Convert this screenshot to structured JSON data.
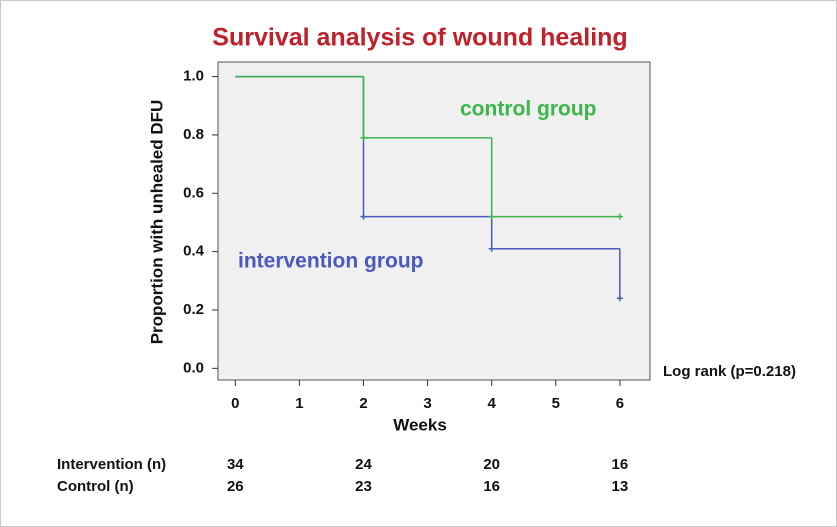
{
  "chart_data": {
    "type": "step",
    "title": "Survival analysis of wound healing",
    "xlabel": "Weeks",
    "ylabel": "Proportion with unhealed DFU",
    "x": [
      0,
      2,
      4,
      6
    ],
    "series": [
      {
        "name": "intervention group",
        "color": "#4a58c2",
        "values": [
          1.0,
          0.52,
          0.41,
          0.24
        ]
      },
      {
        "name": "control group",
        "color": "#3cb54b",
        "values": [
          1.0,
          0.79,
          0.52,
          0.52
        ]
      }
    ],
    "xlim": [
      -0.27,
      6.47
    ],
    "ylim": [
      -0.04,
      1.05
    ],
    "xticks": [
      0,
      1,
      2,
      3,
      4,
      5,
      6
    ],
    "yticks": [
      {
        "value": 0,
        "label": "0.0"
      },
      0.2,
      0.4,
      0.6,
      0.8,
      {
        "value": 1,
        "label": "1.0"
      }
    ],
    "annotation": "Log rank (p=0.218)",
    "at_risk": [
      {
        "label": "Intervention (n)",
        "values": [
          34,
          24,
          20,
          16
        ]
      },
      {
        "label": "Control (n)",
        "values": [
          26,
          23,
          16,
          13
        ]
      }
    ]
  }
}
